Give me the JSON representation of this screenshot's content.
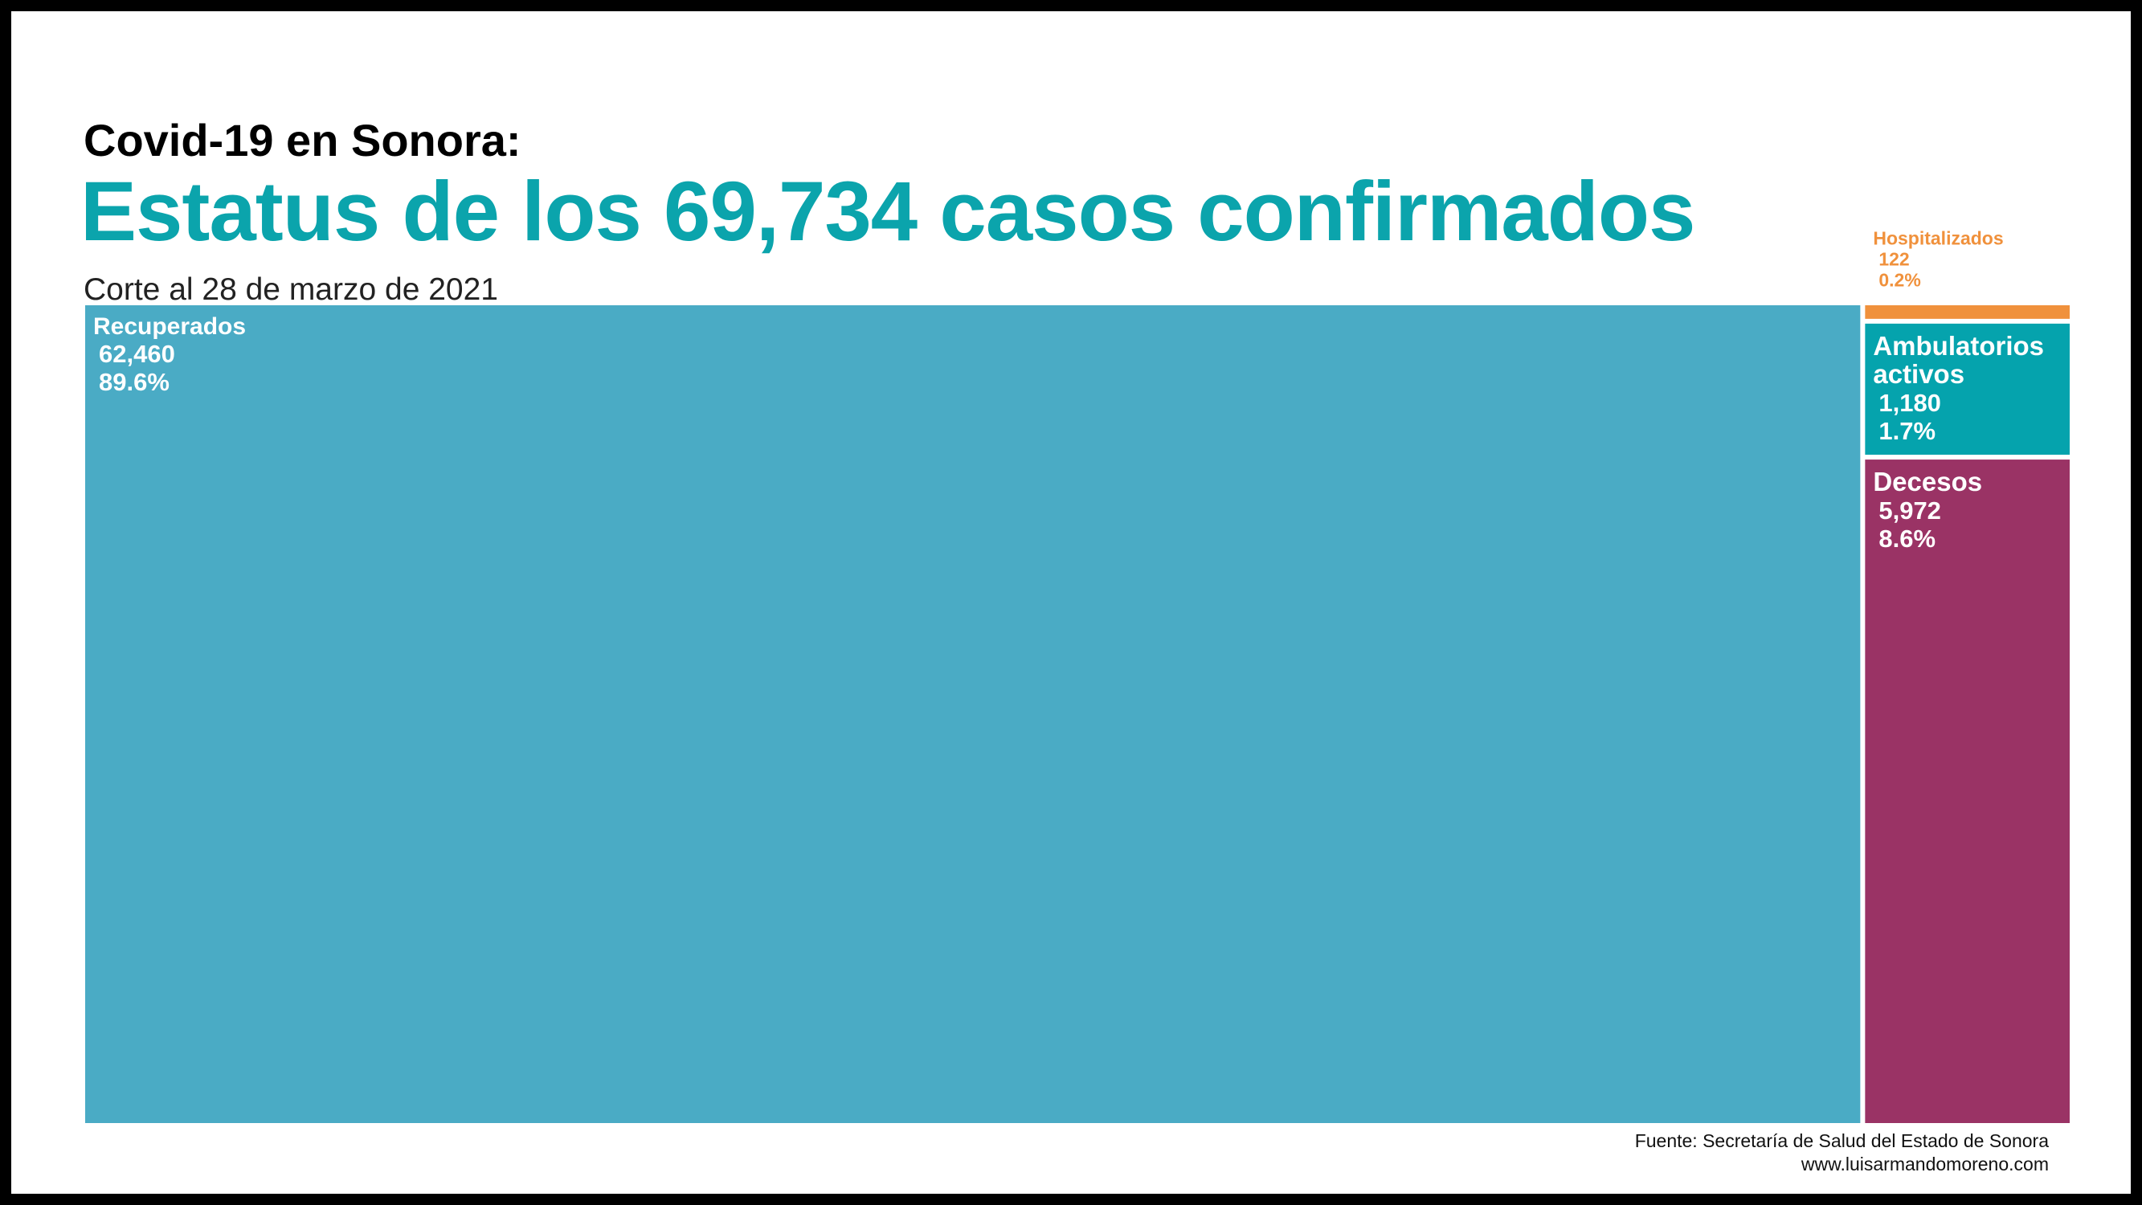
{
  "header": {
    "kicker": "Covid-19 en Sonora:",
    "headline": "Estatus de los 69,734 casos confirmados",
    "subtitle": "Corte al 28 de marzo de 2021"
  },
  "chart_data": {
    "type": "treemap",
    "total": 69734,
    "items": [
      {
        "label": "Recuperados",
        "value": 62460,
        "value_label": "62,460",
        "percent_label": "89.6%",
        "color": "#4aabc5"
      },
      {
        "label": "Hospitalizados",
        "value": 122,
        "value_label": "122",
        "percent_label": "0.2%",
        "color": "#f0913c"
      },
      {
        "label": "Ambulatorios activos",
        "value": 1180,
        "value_label": "1,180",
        "percent_label": "1.7%",
        "color": "#05a3ad"
      },
      {
        "label": "Decesos",
        "value": 5972,
        "value_label": "5,972",
        "percent_label": "8.6%",
        "color": "#9a3365"
      }
    ]
  },
  "footer": {
    "source": "Fuente: Secretaría de Salud del Estado de Sonora",
    "website": "www.luisarmandomoreno.com"
  }
}
